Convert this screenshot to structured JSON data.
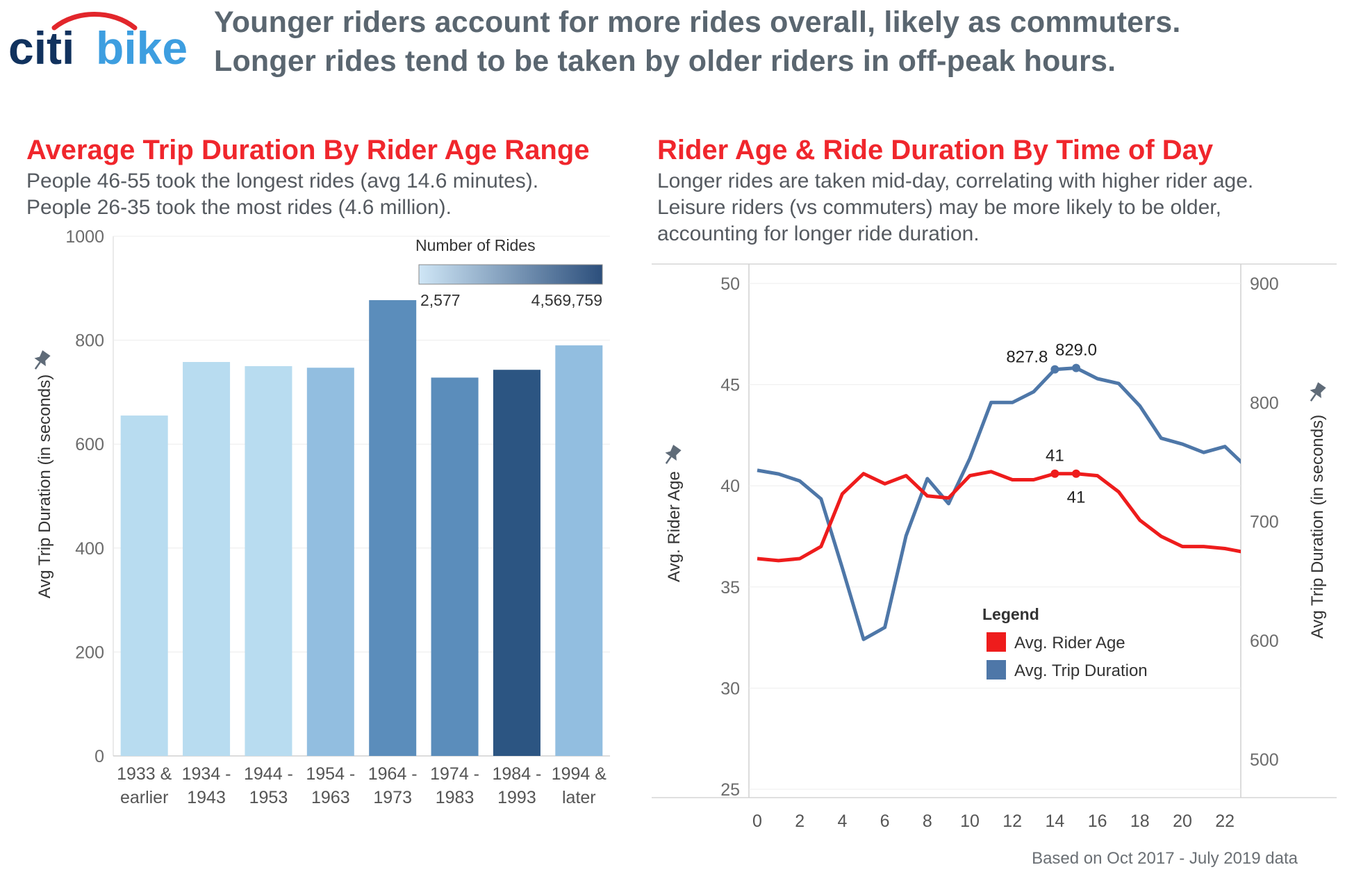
{
  "header": {
    "logo_text": "citibike",
    "line1": "Younger riders account for more rides overall, likely as commuters.",
    "line2": "Longer rides tend to be taken by older riders in off-peak hours."
  },
  "left_panel": {
    "title": "Average Trip Duration By Rider Age Range",
    "sub1": "People 46-55 took the longest rides (avg 14.6 minutes).",
    "sub2": "People 26-35 took the most rides (4.6 million)."
  },
  "right_panel": {
    "title": "Rider Age & Ride Duration By Time of Day",
    "sub1": "Longer rides are taken mid-day, correlating with higher rider age.",
    "sub2": "Leisure riders (vs commuters) may be more likely to be older,",
    "sub3": "accounting for longer ride duration."
  },
  "footer": "Based on Oct 2017 - July  2019 data",
  "chart_data": [
    {
      "type": "bar",
      "title": "Average Trip Duration By Rider Age Range",
      "ylabel": "Avg Trip Duration (in seconds)",
      "ylim": [
        0,
        1000
      ],
      "yticks": [
        0,
        200,
        400,
        600,
        800,
        1000
      ],
      "categories": [
        [
          "1933 &",
          "earlier"
        ],
        [
          "1934 -",
          "1943"
        ],
        [
          "1944 -",
          "1953"
        ],
        [
          "1954 -",
          "1963"
        ],
        [
          "1964 -",
          "1973"
        ],
        [
          "1974 -",
          "1983"
        ],
        [
          "1984 -",
          "1993"
        ],
        [
          "1994 &",
          "later"
        ]
      ],
      "values": [
        655,
        758,
        750,
        747,
        877,
        728,
        743,
        790
      ],
      "colors": [
        "#b8dcf0",
        "#b8dcf0",
        "#b8dcf0",
        "#92bee0",
        "#5b8dbb",
        "#5b8dbb",
        "#2c5582",
        "#92bee0"
      ],
      "legend": {
        "title": "Number of Rides",
        "min_label": "2,577",
        "max_label": "4,569,759",
        "color_min": "#cfe6f6",
        "color_max": "#2c4f7c"
      }
    },
    {
      "type": "line",
      "title": "Rider Age & Ride Duration By Time of Day",
      "x": [
        0,
        1,
        2,
        3,
        4,
        5,
        6,
        7,
        8,
        9,
        10,
        11,
        12,
        13,
        14,
        15,
        16,
        17,
        18,
        19,
        20,
        21,
        22,
        23
      ],
      "xticks": [
        0,
        2,
        4,
        6,
        8,
        10,
        12,
        14,
        16,
        18,
        20,
        22
      ],
      "y_left": {
        "label": "Avg. Rider Age",
        "lim": [
          25,
          50
        ],
        "ticks": [
          25,
          30,
          35,
          40,
          45,
          50
        ]
      },
      "y_right": {
        "label": "Avg Trip Duration (in seconds)",
        "lim": [
          475,
          900
        ],
        "ticks": [
          500,
          600,
          700,
          800,
          900
        ]
      },
      "series": [
        {
          "name": "Avg. Rider Age",
          "axis": "left",
          "color": "#ee1c1c",
          "values": [
            36.4,
            36.3,
            36.4,
            37.0,
            39.6,
            40.6,
            40.1,
            40.5,
            39.5,
            39.4,
            40.5,
            40.7,
            40.3,
            40.3,
            40.6,
            40.6,
            40.5,
            39.7,
            38.3,
            37.5,
            37.0,
            37.0,
            36.9,
            36.7
          ],
          "labels": [
            {
              "i": 14,
              "text": "41",
              "pos": "above"
            },
            {
              "i": 15,
              "text": "41",
              "pos": "below"
            }
          ]
        },
        {
          "name": "Avg. Trip Duration",
          "axis": "right",
          "color": "#4e77a8",
          "values": [
            743,
            740,
            734,
            719,
            661,
            601,
            611,
            688,
            736,
            715,
            753,
            800,
            800,
            809,
            827.8,
            829.0,
            820,
            816,
            797,
            770,
            765,
            758,
            763,
            746
          ],
          "labels": [
            {
              "i": 14,
              "text": "827.8",
              "pos": "left"
            },
            {
              "i": 15,
              "text": "829.0",
              "pos": "above"
            }
          ]
        }
      ],
      "legend": {
        "title": "Legend",
        "items": [
          "Avg. Rider Age",
          "Avg. Trip Duration"
        ]
      }
    }
  ]
}
